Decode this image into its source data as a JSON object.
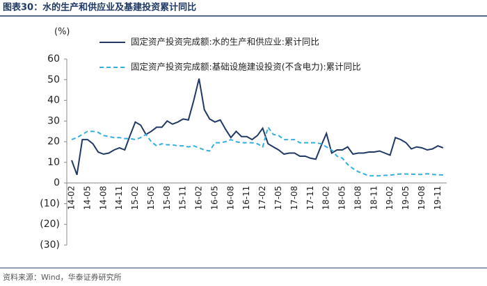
{
  "chart_data": {
    "type": "line",
    "title": "图表30：水的生产和供应业及基建投资累计同比",
    "y_label": "(%)",
    "source": "资料来源：Wind，华泰证券研究所",
    "categories": [
      "14-02",
      null,
      null,
      "14-05",
      null,
      null,
      "14-08",
      null,
      null,
      "14-11",
      null,
      null,
      "15-02",
      null,
      null,
      "15-05",
      null,
      null,
      "15-08",
      null,
      null,
      "15-11",
      null,
      null,
      "16-02",
      null,
      null,
      "16-05",
      null,
      null,
      "16-08",
      null,
      null,
      "16-11",
      null,
      null,
      "17-02",
      null,
      null,
      "17-05",
      null,
      null,
      "17-08",
      null,
      null,
      "17-11",
      null,
      null,
      "18-02",
      null,
      null,
      "18-05",
      null,
      null,
      "18-08",
      null,
      null,
      "18-11",
      null,
      null,
      "19-02",
      null,
      null,
      "19-05",
      null,
      null,
      "19-08",
      null,
      null,
      "19-11",
      null
    ],
    "series": [
      {
        "name": "固定资产投资完成额:水的生产和供应业:累计同比",
        "color": "#1f3864",
        "dash": false,
        "values": [
          11,
          4,
          21,
          21,
          19,
          15,
          14,
          14.5,
          16,
          17,
          16,
          23,
          29.5,
          28,
          23.5,
          25,
          27,
          27,
          30,
          28.5,
          29.5,
          31,
          30.5,
          40,
          50.5,
          35.5,
          31,
          29.5,
          30.5,
          26,
          22,
          25,
          22.5,
          22.5,
          21,
          23,
          26.5,
          19,
          17.5,
          16,
          14,
          14.5,
          14.5,
          13,
          13,
          12,
          11.5,
          18,
          24,
          14.5,
          16,
          16,
          17.5,
          14,
          14.5,
          14.5,
          15,
          15,
          15.5,
          14.5,
          13.5,
          22,
          21,
          19.5,
          16.5,
          17.5,
          17,
          16,
          16.5,
          18,
          17
        ]
      },
      {
        "name": "固定资产投资完成额:基础设施建设投资(不含电力):累计同比",
        "color": "#33aee0",
        "dash": true,
        "values": [
          21,
          22,
          23.5,
          25,
          25,
          24.5,
          23,
          22.5,
          22,
          22,
          21.5,
          21.5,
          21,
          22,
          23.5,
          20,
          18,
          19,
          18.5,
          18.5,
          18,
          18,
          17.5,
          18,
          17,
          16,
          15.5,
          19.5,
          19.5,
          20,
          21,
          20,
          19.5,
          19.5,
          19.5,
          19,
          17.5,
          27,
          23.5,
          23,
          21,
          21,
          21,
          19.5,
          19.5,
          19.5,
          19.5,
          19,
          17.5,
          16,
          13,
          12,
          9,
          7,
          5.5,
          4.5,
          3.5,
          3.5,
          3.5,
          3.7,
          3.8,
          4.2,
          4.4,
          4.4,
          4.3,
          4.2,
          4.2,
          4.5,
          4.2,
          4,
          3.9
        ]
      }
    ],
    "ylim": [
      -30,
      60
    ],
    "yticks": [
      {
        "value": -30,
        "label": "(30)"
      },
      {
        "value": -20,
        "label": "(20)"
      },
      {
        "value": -10,
        "label": "(10)"
      },
      0,
      10,
      20,
      30,
      40,
      50,
      60
    ]
  }
}
